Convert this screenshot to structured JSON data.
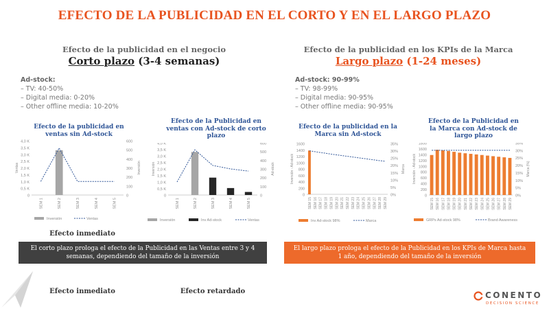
{
  "title": "EFECTO DE LA PUBLICIDAD EN EL CORTO Y EN EL LARGO PLAZO",
  "left": {
    "subtitle": "Efecto de la publicidad en el negocio",
    "horizon_underlined": "Corto plazo",
    "horizon_rest": " (3-4 semanas)",
    "adstock_header": "Ad-stock:",
    "adstock_items": [
      "TV: 40-50%",
      "Digital media: 0-20%",
      "Other offline media: 10-20%"
    ],
    "banner": "El corto plazo prologa el efecto de la Publicidad en las Ventas entre 3 y 4 semanas, dependiendo del tamaño de la inversión",
    "effect1": "Efecto inmediato",
    "effect2": "Efecto retardado"
  },
  "right": {
    "subtitle": "Efecto de la publicidad en los KPIs de la Marca",
    "horizon_underlined": "Largo plazo",
    "horizon_rest": " (1-24 meses)",
    "adstock_header": "Ad-stock:  90-99%",
    "adstock_items": [
      "TV: 98-99%",
      "Digital media: 90-95%",
      "Other offline media: 90-95%"
    ],
    "banner": "El largo plazo prologa el efecto de la Publicidad en los KPIs de Marca hasta 1 año, dependiendo del tamaño de la inversión"
  },
  "logo": {
    "name": "CONENTO",
    "tagline": "DECISION SCIENCE"
  },
  "colors": {
    "accent": "#e8531f",
    "chart_title": "#2f5597",
    "gray_bar": "#a6a6a6",
    "dark_bar": "#262626",
    "line": "#2f5597",
    "orange": "#ed7d31",
    "banner_left": "#404040",
    "banner_right": "#ed6a2b"
  },
  "chart_data": [
    {
      "id": "c1",
      "type": "bar",
      "title": "Efecto de la publicidad en ventas sin Ad-stock",
      "categories": [
        "SEM 1",
        "SEM 2",
        "SEM 3",
        "SEM 4",
        "SEM 5"
      ],
      "ylabel": "Ventas",
      "y2label": "Inversión",
      "yticks": [
        "0",
        "0,5 K",
        "1,0 K",
        "1,5 K",
        "2,0 K",
        "2,5 K",
        "3,0 K",
        "3,5 K",
        "4,0 K"
      ],
      "y2ticks": [
        "0",
        "100",
        "200",
        "300",
        "400",
        "500",
        "600"
      ],
      "ylim": [
        0,
        4000
      ],
      "y2lim": [
        0,
        600
      ],
      "series": [
        {
          "name": "Inversión",
          "kind": "bar",
          "axis": "y",
          "values": [
            0,
            3300,
            0,
            0,
            0
          ]
        },
        {
          "name": "Ventas",
          "kind": "line",
          "axis": "y2",
          "values": [
            150,
            520,
            150,
            150,
            150
          ]
        }
      ]
    },
    {
      "id": "c2",
      "type": "bar",
      "title": "Efecto de la Publicidad en ventas con Ad-stock de corto plazo",
      "categories": [
        "SEM 1",
        "SEM 2",
        "SEM 3",
        "SEM 4",
        "SEM 5"
      ],
      "ylabel": "Inversión",
      "y2label": "Ad-stock",
      "yticks": [
        "0",
        "0,5 K",
        "1,0 K",
        "1,5 K",
        "2,0 K",
        "2,5 K",
        "3,0 K",
        "3,5 K",
        "4,0 K"
      ],
      "y2ticks": [
        "0",
        "100",
        "200",
        "300",
        "400",
        "500",
        "600"
      ],
      "ylim": [
        0,
        4000
      ],
      "y2lim": [
        0,
        600
      ],
      "series": [
        {
          "name": "Inversión",
          "kind": "bar",
          "axis": "y",
          "values": [
            0,
            3300,
            0,
            0,
            0
          ]
        },
        {
          "name": "Inv Ad-stock",
          "kind": "bar",
          "axis": "y2",
          "values": [
            0,
            0,
            200,
            80,
            35
          ]
        },
        {
          "name": "Ventas",
          "kind": "line",
          "axis": "y2",
          "values": [
            150,
            520,
            340,
            300,
            275
          ]
        }
      ]
    },
    {
      "id": "c3",
      "type": "bar",
      "title": "Efecto de la publicidad en la Marca sin Ad-stock",
      "categories": [
        "SEM 15",
        "SEM 16",
        "SEM 17",
        "SEM 18",
        "SEM 19",
        "SEM 20",
        "SEM 21",
        "SEM 22",
        "SEM 23",
        "SEM 24",
        "SEM 25",
        "SEM 26",
        "SEM 27",
        "SEM 28",
        "SEM 29"
      ],
      "ylabel": "Inversión - Ad-stock",
      "y2label": "Marca",
      "yticks": [
        "0",
        "200",
        "400",
        "600",
        "800",
        "1000",
        "1200",
        "1400",
        "1600"
      ],
      "y2ticks": [
        "0%",
        "5%",
        "10%",
        "15%",
        "20%",
        "25%",
        "30%",
        "35%"
      ],
      "ylim": [
        0,
        1600
      ],
      "y2lim": [
        0,
        35
      ],
      "series": [
        {
          "name": "Inv Ad-stock 98%",
          "kind": "bar",
          "axis": "y",
          "values": [
            1380,
            0,
            0,
            0,
            0,
            0,
            0,
            0,
            0,
            0,
            0,
            0,
            0,
            0,
            0
          ]
        },
        {
          "name": "Marca",
          "kind": "line",
          "axis": "y2",
          "values": [
            30,
            29.4,
            28.8,
            28.3,
            27.7,
            27.2,
            26.7,
            26.2,
            25.7,
            25.2,
            24.7,
            24.2,
            23.7,
            23.2,
            22.8
          ]
        }
      ]
    },
    {
      "id": "c4",
      "type": "bar",
      "title": "Efecto de la Publicidad en la Marca con Ad-stock de largo plazo",
      "categories": [
        "SEM 15",
        "SEM 16",
        "SEM 17",
        "SEM 18",
        "SEM 19",
        "SEM 20",
        "SEM 21",
        "SEM 22",
        "SEM 23",
        "SEM 24",
        "SEM 25",
        "SEM 26",
        "SEM 27",
        "SEM 28",
        "SEM 29"
      ],
      "ylabel": "Inversión - Ad-stock",
      "y2label": "Marca (%)",
      "yticks": [
        "0",
        "200",
        "400",
        "600",
        "800",
        "1000",
        "1200",
        "1400",
        "1600",
        "1800"
      ],
      "y2ticks": [
        "0%",
        "5%",
        "10%",
        "15%",
        "20%",
        "25%",
        "30%",
        "35%"
      ],
      "ylim": [
        0,
        1800
      ],
      "y2lim": [
        0,
        35
      ],
      "series": [
        {
          "name": "GRPs Ad-stock 98%",
          "kind": "bar",
          "axis": "y",
          "values": [
            1380,
            1560,
            1540,
            1520,
            1490,
            1460,
            1440,
            1420,
            1400,
            1380,
            1360,
            1340,
            1320,
            1300,
            1280
          ]
        },
        {
          "name": "Brand Awareness",
          "kind": "line",
          "axis": "y2",
          "values": [
            30,
            30,
            30,
            30,
            30,
            30,
            30,
            30,
            30,
            30,
            30,
            30,
            30,
            30,
            30
          ]
        }
      ]
    }
  ]
}
